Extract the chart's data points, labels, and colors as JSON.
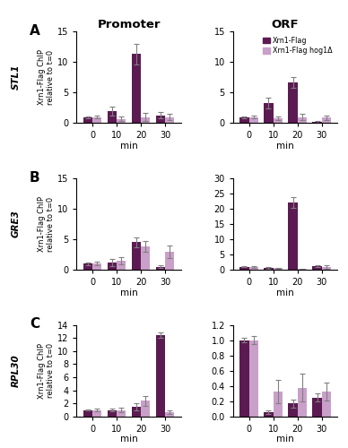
{
  "title_promoter": "Promoter",
  "title_orf": "ORF",
  "row_labels": [
    "A",
    "B",
    "C"
  ],
  "gene_labels": [
    "STL1",
    "GRE3",
    "RPL30"
  ],
  "x_ticks": [
    0,
    10,
    20,
    30
  ],
  "x_label": "min",
  "y_label": "Xrn1-Flag ChIP\nrelative to t=0",
  "color_wt": "#5c1a52",
  "color_hog1": "#c9a0c9",
  "legend_labels": [
    "Xrn1-Flag",
    "Xrn1-Flag hog1Δ"
  ],
  "bar_width": 0.38,
  "panels": [
    {
      "row": 0,
      "col": 0,
      "ylim": [
        0,
        15
      ],
      "yticks": [
        0,
        5,
        10,
        15
      ],
      "wt_values": [
        1.0,
        2.0,
        11.3,
        1.3
      ],
      "wt_err": [
        0.15,
        0.7,
        1.7,
        0.5
      ],
      "hog1_values": [
        1.0,
        0.7,
        1.0,
        1.0
      ],
      "hog1_err": [
        0.25,
        0.35,
        0.6,
        0.55
      ]
    },
    {
      "row": 0,
      "col": 1,
      "ylim": [
        0,
        15
      ],
      "yticks": [
        0,
        5,
        10,
        15
      ],
      "wt_values": [
        1.0,
        3.3,
        6.7,
        0.2
      ],
      "wt_err": [
        0.15,
        0.9,
        0.9,
        0.1
      ],
      "hog1_values": [
        1.0,
        0.8,
        1.0,
        0.9
      ],
      "hog1_err": [
        0.2,
        0.3,
        0.45,
        0.4
      ]
    },
    {
      "row": 1,
      "col": 0,
      "ylim": [
        0,
        15
      ],
      "yticks": [
        0,
        5,
        10,
        15
      ],
      "wt_values": [
        1.0,
        1.2,
        4.5,
        0.5
      ],
      "wt_err": [
        0.2,
        0.55,
        0.8,
        0.2
      ],
      "hog1_values": [
        1.0,
        1.5,
        3.8,
        3.0
      ],
      "hog1_err": [
        0.3,
        0.6,
        0.9,
        1.0
      ]
    },
    {
      "row": 1,
      "col": 1,
      "ylim": [
        0,
        30
      ],
      "yticks": [
        0,
        5,
        10,
        15,
        20,
        25,
        30
      ],
      "wt_values": [
        1.0,
        0.6,
        22.0,
        1.2
      ],
      "wt_err": [
        0.2,
        0.2,
        1.8,
        0.4
      ],
      "hog1_values": [
        1.0,
        0.5,
        0.3,
        1.0
      ],
      "hog1_err": [
        0.3,
        0.2,
        0.15,
        0.55
      ]
    },
    {
      "row": 2,
      "col": 0,
      "ylim": [
        0,
        14
      ],
      "yticks": [
        0,
        2,
        4,
        6,
        8,
        10,
        12,
        14
      ],
      "wt_values": [
        1.0,
        1.0,
        1.5,
        12.5
      ],
      "wt_err": [
        0.1,
        0.2,
        0.5,
        0.4
      ],
      "hog1_values": [
        1.0,
        1.0,
        2.4,
        0.7
      ],
      "hog1_err": [
        0.2,
        0.3,
        0.8,
        0.3
      ]
    },
    {
      "row": 2,
      "col": 1,
      "ylim": [
        0,
        1.2
      ],
      "yticks": [
        0.0,
        0.2,
        0.4,
        0.6,
        0.8,
        1.0,
        1.2
      ],
      "wt_values": [
        1.0,
        0.06,
        0.17,
        0.25
      ],
      "wt_err": [
        0.03,
        0.02,
        0.05,
        0.05
      ],
      "hog1_values": [
        1.0,
        0.33,
        0.38,
        0.33
      ],
      "hog1_err": [
        0.05,
        0.15,
        0.18,
        0.12
      ]
    }
  ]
}
